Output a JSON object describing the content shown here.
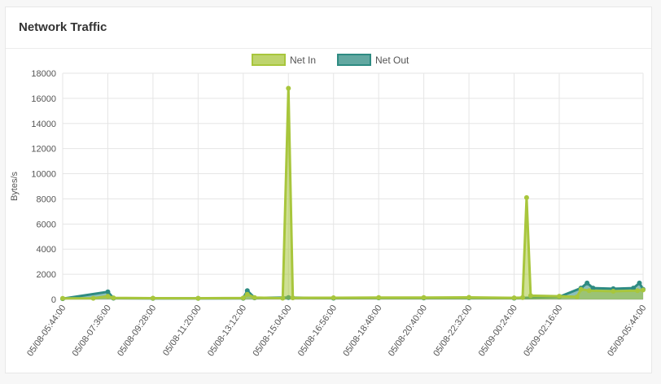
{
  "panel": {
    "title": "Network Traffic"
  },
  "chart_data": {
    "type": "area",
    "ylabel": "Bytes/s",
    "ylim": [
      0,
      18000
    ],
    "yticks": [
      0,
      2000,
      4000,
      6000,
      8000,
      10000,
      12000,
      14000,
      16000,
      18000
    ],
    "xlim": [
      "05/08-05:44:00",
      "05/09-05:44:00"
    ],
    "xticks": [
      "05/08-05:44:00",
      "05/08-07:36:00",
      "05/08-09:28:00",
      "05/08-11:20:00",
      "05/08-13:12:00",
      "05/08-15:04:00",
      "05/08-16:56:00",
      "05/08-18:48:00",
      "05/08-20:40:00",
      "05/08-22:32:00",
      "05/09-00:24:00",
      "05/09-02:16:00",
      "05/09-05:44:00"
    ],
    "legend": "top-center",
    "grid": true,
    "series": [
      {
        "name": "Net In",
        "color": "#a8c63c",
        "points": [
          [
            "05/08-05:44:00",
            80
          ],
          [
            "05/08-07:00:00",
            90
          ],
          [
            "05/08-07:36:00",
            250
          ],
          [
            "05/08-07:50:00",
            120
          ],
          [
            "05/08-09:28:00",
            100
          ],
          [
            "05/08-11:20:00",
            90
          ],
          [
            "05/08-13:12:00",
            110
          ],
          [
            "05/08-13:22:00",
            400
          ],
          [
            "05/08-13:40:00",
            150
          ],
          [
            "05/08-14:50:00",
            100
          ],
          [
            "05/08-15:04:00",
            16800
          ],
          [
            "05/08-15:15:00",
            120
          ],
          [
            "05/08-16:56:00",
            130
          ],
          [
            "05/08-18:48:00",
            150
          ],
          [
            "05/08-20:40:00",
            140
          ],
          [
            "05/08-22:32:00",
            160
          ],
          [
            "05/09-00:24:00",
            120
          ],
          [
            "05/09-00:45:00",
            150
          ],
          [
            "05/09-00:55:00",
            8100
          ],
          [
            "05/09-01:05:00",
            300
          ],
          [
            "05/09-02:16:00",
            250
          ],
          [
            "05/09-03:00:00",
            200
          ],
          [
            "05/09-03:10:00",
            800
          ],
          [
            "05/09-03:30:00",
            700
          ],
          [
            "05/09-04:30:00",
            650
          ],
          [
            "05/09-05:30:00",
            700
          ],
          [
            "05/09-05:44:00",
            750
          ]
        ]
      },
      {
        "name": "Net Out",
        "color": "#2e8b82",
        "points": [
          [
            "05/08-05:44:00",
            60
          ],
          [
            "05/08-07:36:00",
            600
          ],
          [
            "05/08-07:50:00",
            100
          ],
          [
            "05/08-09:28:00",
            80
          ],
          [
            "05/08-11:20:00",
            80
          ],
          [
            "05/08-13:12:00",
            90
          ],
          [
            "05/08-13:22:00",
            700
          ],
          [
            "05/08-13:40:00",
            120
          ],
          [
            "05/08-15:04:00",
            150
          ],
          [
            "05/08-16:56:00",
            100
          ],
          [
            "05/08-18:48:00",
            120
          ],
          [
            "05/08-20:40:00",
            110
          ],
          [
            "05/08-22:32:00",
            130
          ],
          [
            "05/09-00:24:00",
            100
          ],
          [
            "05/09-02:16:00",
            200
          ],
          [
            "05/09-03:10:00",
            900
          ],
          [
            "05/09-03:25:00",
            1300
          ],
          [
            "05/09-03:40:00",
            900
          ],
          [
            "05/09-04:30:00",
            850
          ],
          [
            "05/09-05:20:00",
            900
          ],
          [
            "05/09-05:35:00",
            1300
          ],
          [
            "05/09-05:44:00",
            800
          ]
        ]
      }
    ]
  }
}
